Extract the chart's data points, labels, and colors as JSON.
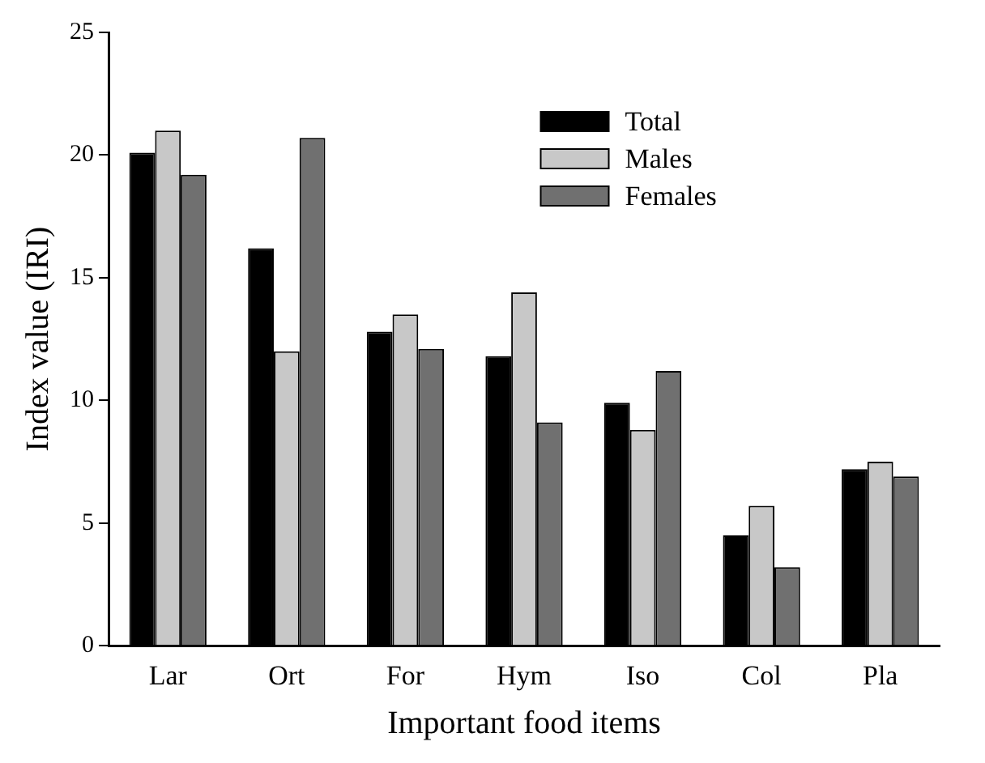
{
  "chart_data": {
    "type": "bar",
    "xlabel": "Important food items",
    "ylabel": "Index value (IRI)",
    "categories": [
      "Lar",
      "Ort",
      "For",
      "Hym",
      "Iso",
      "Col",
      "Pla"
    ],
    "series": [
      {
        "name": "Total",
        "color": "#000000",
        "values": [
          20.1,
          16.2,
          12.8,
          11.8,
          9.9,
          4.5,
          7.2
        ]
      },
      {
        "name": "Males",
        "color": "#c8c8c8",
        "values": [
          21.0,
          12.0,
          13.5,
          14.4,
          8.8,
          5.7,
          7.5
        ]
      },
      {
        "name": "Females",
        "color": "#707070",
        "values": [
          19.2,
          20.7,
          12.1,
          9.1,
          11.2,
          3.2,
          6.9
        ]
      }
    ],
    "ylim": [
      0,
      25
    ],
    "yticks": [
      0,
      5,
      10,
      15,
      20,
      25
    ],
    "grid": false,
    "legend": "top right"
  }
}
